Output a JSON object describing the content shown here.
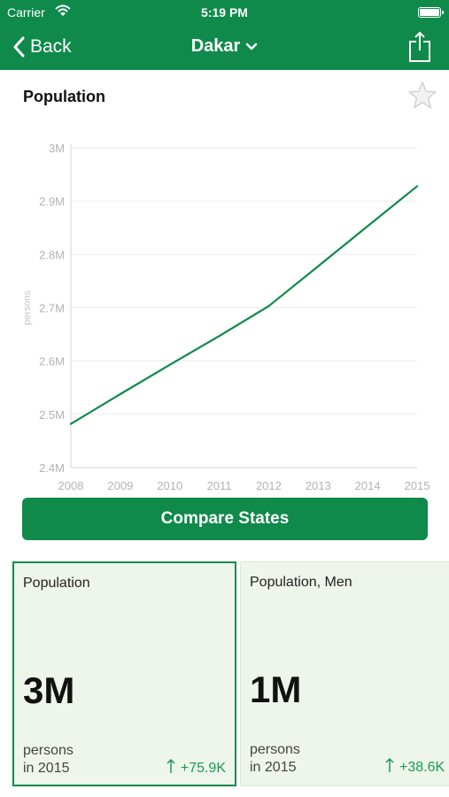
{
  "status_bar": {
    "carrier": "Carrier",
    "time": "5:19 PM"
  },
  "nav": {
    "back_label": "Back",
    "city": "Dakar"
  },
  "section": {
    "title": "Population"
  },
  "chart_data": {
    "type": "line",
    "title": "",
    "xlabel": "",
    "ylabel": "persons",
    "x": [
      2008,
      2009,
      2010,
      2011,
      2012,
      2013,
      2014,
      2015
    ],
    "x_tick_labels": [
      "2008",
      "2009",
      "2010",
      "2011",
      "2012",
      "2013",
      "2014",
      "2015"
    ],
    "y_tick_labels": [
      "2.4M",
      "2.5M",
      "2.6M",
      "2.7M",
      "2.8M",
      "2.9M",
      "3M"
    ],
    "y_ticks": [
      2400000,
      2500000,
      2600000,
      2700000,
      2800000,
      2900000,
      3000000
    ],
    "ylim": [
      2400000,
      3000000
    ],
    "xlim": [
      2008,
      2015
    ],
    "grid": true,
    "color": "#0f8a4b",
    "series": [
      {
        "values": [
          2482000,
          2538000,
          2593000,
          2647000,
          2703000,
          2778000,
          2853000,
          2928000
        ]
      }
    ]
  },
  "compare_button": {
    "label": "Compare States"
  },
  "cards": [
    {
      "label": "Population",
      "value": "3M",
      "unit": "persons",
      "year": "in 2015",
      "change": "+75.9K"
    },
    {
      "label": "Population, Men",
      "value": "1M",
      "unit": "persons",
      "year": "in 2015",
      "change": "+38.6K"
    }
  ],
  "colors": {
    "brand_green": "#0f8a4b",
    "card_bg": "#eef5ea",
    "change_green": "#1a9a5a"
  },
  "icons": {
    "back": "chevron-left-icon",
    "dropdown": "chevron-down-icon",
    "share": "share-icon",
    "favorite": "star-icon",
    "trend": "arrow-up-icon",
    "wifi": "wifi-icon",
    "battery": "battery-icon"
  }
}
